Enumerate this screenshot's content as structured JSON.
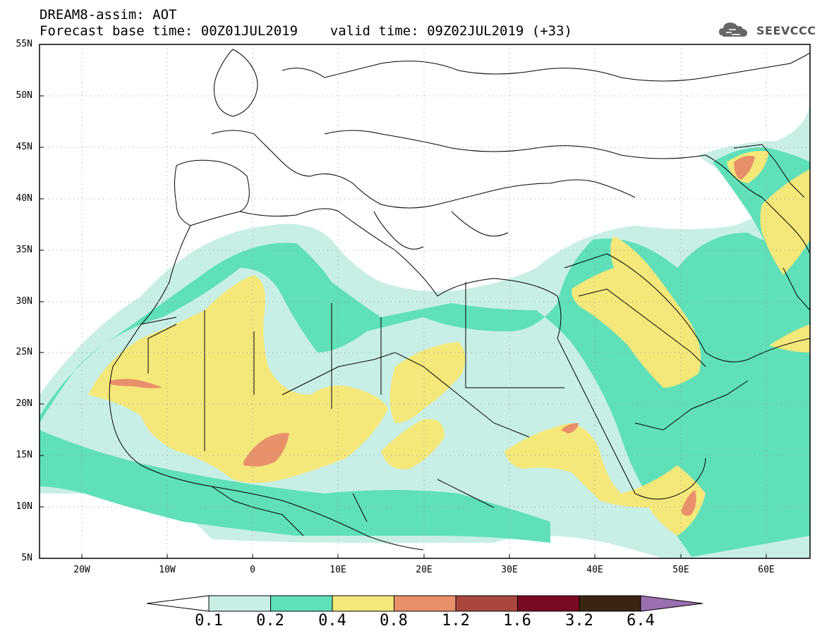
{
  "header": {
    "title_line1": "DREAM8-assim: AOT",
    "title_line2": "Forecast base time: 00Z01JUL2019    valid time: 09Z02JUL2019 (+33)",
    "logo_text": "SEEVCCC"
  },
  "map": {
    "latitude_labels": [
      "55N",
      "50N",
      "45N",
      "40N",
      "35N",
      "30N",
      "25N",
      "20N",
      "15N",
      "10N",
      "5N"
    ],
    "longitude_labels": [
      "20W",
      "10W",
      "0",
      "10E",
      "20E",
      "30E",
      "40E",
      "50E",
      "60E"
    ],
    "lat_range": [
      5,
      55
    ],
    "lon_range": [
      -25,
      65
    ],
    "grid": "dotted",
    "background_color": "#ffffff",
    "borders_color": "#000000"
  },
  "colorbar": {
    "levels": [
      "0.1",
      "0.2",
      "0.4",
      "0.8",
      "1.2",
      "1.6",
      "3.2",
      "6.4"
    ],
    "colors": [
      "#c8efe6",
      "#5fe0b8",
      "#f5e87a",
      "#e8906a",
      "#a9473e",
      "#7a0a22",
      "#3a2412",
      "#9a6fb0"
    ],
    "under_color": "#ffffff",
    "over_color": "#9a6fb0"
  }
}
